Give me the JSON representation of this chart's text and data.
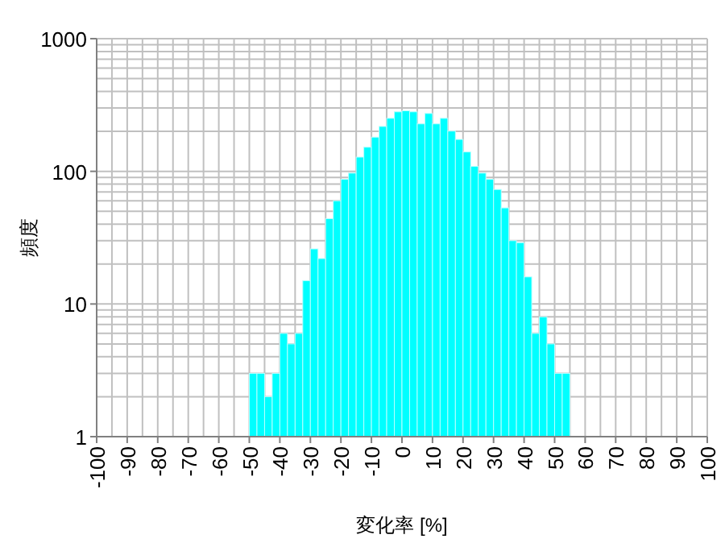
{
  "chart_data": {
    "type": "histogram",
    "xlabel": "変化率 [%]",
    "ylabel": "頻度",
    "color": "#00ffff",
    "log": true,
    "grid": true,
    "bins": [
      -50,
      -47.5,
      -45,
      -42.5,
      -40,
      -37.5,
      -35,
      -32.5,
      -30,
      -27.5,
      -25,
      -22.5,
      -20,
      -17.5,
      -15,
      -12.5,
      -10,
      -7.5,
      -5,
      -2.5,
      0,
      2.5,
      5,
      7.5,
      10,
      12.5,
      15,
      17.5,
      20,
      22.5,
      25,
      27.5,
      30,
      32.5,
      35,
      37.5,
      40,
      42.5,
      45,
      47.5,
      50,
      52.5,
      55
    ],
    "values": [
      3,
      3,
      2,
      3,
      6,
      5,
      6,
      15,
      26,
      22,
      44,
      60,
      87,
      97,
      128,
      152,
      181,
      218,
      251,
      281,
      286,
      281,
      228,
      273,
      228,
      251,
      201,
      174,
      140,
      109,
      97,
      87,
      73,
      53,
      30,
      29,
      16,
      6,
      8,
      5,
      3,
      3
    ],
    "xlim": [
      -100,
      100
    ],
    "xticks": [
      -100,
      -90,
      -80,
      -70,
      -60,
      -50,
      -40,
      -30,
      -20,
      -10,
      0,
      10,
      20,
      30,
      40,
      50,
      60,
      70,
      80,
      90,
      100
    ],
    "ylim": [
      1,
      1000
    ],
    "yticks": [
      1,
      10,
      100,
      1000
    ]
  }
}
